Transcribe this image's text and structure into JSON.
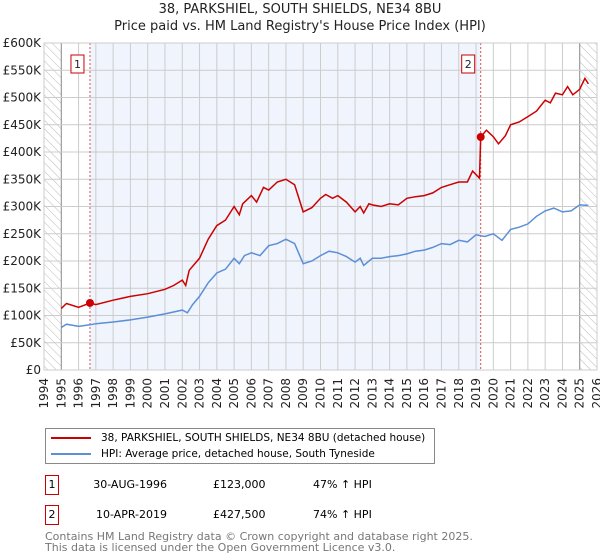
{
  "chart_data": {
    "type": "line",
    "title": "38, PARKSHIEL, SOUTH SHIELDS, NE34 8BU",
    "subtitle": "Price paid vs. HM Land Registry's House Price Index (HPI)",
    "xlim": [
      1994,
      2026
    ],
    "ylim": [
      0,
      600000
    ],
    "x_ticks": [
      "1994",
      "1995",
      "1996",
      "1997",
      "1998",
      "1999",
      "2000",
      "2001",
      "2002",
      "2003",
      "2004",
      "2005",
      "2006",
      "2007",
      "2008",
      "2009",
      "2010",
      "2011",
      "2012",
      "2013",
      "2014",
      "2015",
      "2016",
      "2017",
      "2018",
      "2019",
      "2020",
      "2021",
      "2022",
      "2023",
      "2024",
      "2025",
      "2026"
    ],
    "y_ticks": [
      {
        "v": 0,
        "label": "£0"
      },
      {
        "v": 50000,
        "label": "£50K"
      },
      {
        "v": 100000,
        "label": "£100K"
      },
      {
        "v": 150000,
        "label": "£150K"
      },
      {
        "v": 200000,
        "label": "£200K"
      },
      {
        "v": 250000,
        "label": "£250K"
      },
      {
        "v": 300000,
        "label": "£300K"
      },
      {
        "v": 350000,
        "label": "£350K"
      },
      {
        "v": 400000,
        "label": "£400K"
      },
      {
        "v": 450000,
        "label": "£450K"
      },
      {
        "v": 500000,
        "label": "£500K"
      },
      {
        "v": 550000,
        "label": "£550K"
      },
      {
        "v": 600000,
        "label": "£600K"
      }
    ],
    "grid": true,
    "shaded_range": [
      1996.66,
      2019.27
    ],
    "hatched_ranges": [
      [
        1994,
        1995
      ],
      [
        2025,
        2026
      ]
    ],
    "series": [
      {
        "name": "38, PARKSHIEL, SOUTH SHIELDS, NE34 8BU (detached house)",
        "color": "#cc0000",
        "x": [
          1995,
          1995.3,
          1996,
          1996.66,
          1997,
          1998,
          1999,
          2000,
          2001,
          2001.5,
          2002,
          2002.2,
          2002.4,
          2003,
          2003.5,
          2004,
          2004.5,
          2005,
          2005.3,
          2005.5,
          2006,
          2006.3,
          2006.7,
          2007,
          2007.5,
          2008,
          2008.5,
          2009,
          2009.5,
          2010,
          2010.3,
          2010.7,
          2011,
          2011.5,
          2012,
          2012.3,
          2012.5,
          2012.8,
          2013,
          2013.5,
          2014,
          2014.5,
          2015,
          2015.5,
          2016,
          2016.5,
          2017,
          2017.5,
          2018,
          2018.5,
          2018.8,
          2019.2,
          2019.27,
          2019.6,
          2020,
          2020.3,
          2020.7,
          2021,
          2021.5,
          2022,
          2022.5,
          2023,
          2023.3,
          2023.6,
          2024,
          2024.3,
          2024.6,
          2025,
          2025.3,
          2025.5
        ],
        "y": [
          113000,
          122000,
          115000,
          123000,
          120000,
          128000,
          135000,
          140000,
          148000,
          155000,
          165000,
          155000,
          183000,
          205000,
          240000,
          265000,
          275000,
          300000,
          285000,
          305000,
          320000,
          308000,
          335000,
          330000,
          345000,
          350000,
          340000,
          290000,
          298000,
          315000,
          322000,
          315000,
          320000,
          308000,
          290000,
          300000,
          288000,
          305000,
          303000,
          300000,
          305000,
          303000,
          315000,
          318000,
          320000,
          325000,
          335000,
          340000,
          345000,
          345000,
          365000,
          352000,
          427500,
          440000,
          428000,
          415000,
          430000,
          450000,
          455000,
          465000,
          475000,
          495000,
          490000,
          508000,
          505000,
          520000,
          505000,
          515000,
          535000,
          525000
        ]
      },
      {
        "name": "HPI: Average price, detached house, South Tyneside",
        "color": "#5b8fd6",
        "x": [
          1995,
          1995.3,
          1996,
          1996.66,
          1997,
          1998,
          1999,
          2000,
          2001,
          2002,
          2002.3,
          2002.6,
          2003,
          2003.5,
          2004,
          2004.5,
          2005,
          2005.3,
          2005.6,
          2006,
          2006.5,
          2007,
          2007.5,
          2008,
          2008.5,
          2009,
          2009.5,
          2010,
          2010.5,
          2011,
          2011.5,
          2012,
          2012.3,
          2012.5,
          2013,
          2013.5,
          2014,
          2014.5,
          2015,
          2015.5,
          2016,
          2016.5,
          2017,
          2017.5,
          2018,
          2018.5,
          2019,
          2019.5,
          2020,
          2020.5,
          2021,
          2021.5,
          2022,
          2022.5,
          2023,
          2023.5,
          2024,
          2024.5,
          2025,
          2025.5
        ],
        "y": [
          78000,
          84000,
          80000,
          83000,
          85000,
          88000,
          92000,
          97000,
          103000,
          110000,
          105000,
          120000,
          135000,
          160000,
          178000,
          185000,
          205000,
          195000,
          210000,
          215000,
          210000,
          228000,
          232000,
          240000,
          232000,
          195000,
          200000,
          210000,
          218000,
          215000,
          208000,
          198000,
          205000,
          192000,
          205000,
          205000,
          208000,
          210000,
          213000,
          218000,
          220000,
          225000,
          232000,
          230000,
          238000,
          235000,
          248000,
          245000,
          250000,
          238000,
          258000,
          262000,
          268000,
          282000,
          292000,
          297000,
          290000,
          292000,
          303000,
          302000
        ]
      }
    ],
    "markers": [
      {
        "label": "1",
        "x": 1996.66,
        "y": 123000
      },
      {
        "label": "2",
        "x": 2019.27,
        "y": 427500
      }
    ]
  },
  "legend": {
    "items": [
      {
        "label": "38, PARKSHIEL, SOUTH SHIELDS, NE34 8BU (detached house)",
        "color": "#cc0000"
      },
      {
        "label": "HPI: Average price, detached house, South Tyneside",
        "color": "#5b8fd6"
      }
    ]
  },
  "transactions": [
    {
      "num": "1",
      "date": "30-AUG-1996",
      "price": "£123,000",
      "hpi": "47% ↑ HPI"
    },
    {
      "num": "2",
      "date": "10-APR-2019",
      "price": "£427,500",
      "hpi": "74% ↑ HPI"
    }
  ],
  "footer": {
    "line1": "Contains HM Land Registry data © Crown copyright and database right 2025.",
    "line2": "This data is licensed under the Open Government Licence v3.0."
  }
}
